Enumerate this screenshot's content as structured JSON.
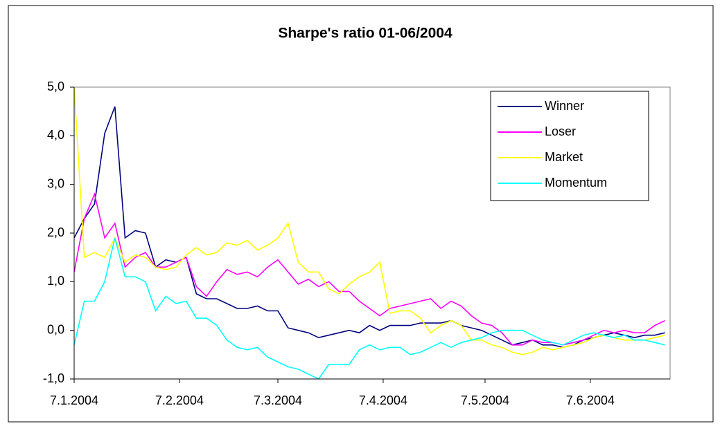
{
  "chart_data": {
    "type": "line",
    "title": "Sharpe's ratio 01-06/2004",
    "x": [
      0,
      3,
      6,
      9,
      12,
      15,
      18,
      21,
      24,
      27,
      30,
      33,
      36,
      39,
      42,
      45,
      48,
      51,
      54,
      57,
      60,
      63,
      66,
      69,
      72,
      75,
      78,
      81,
      84,
      87,
      90,
      93,
      96,
      99,
      102,
      105,
      108,
      111,
      114,
      117,
      120,
      123,
      126,
      129,
      132,
      135,
      138,
      141,
      144,
      147,
      150,
      153,
      156,
      159,
      162,
      165,
      168,
      171,
      174
    ],
    "xlim": [
      0,
      175.5
    ],
    "xticks": [
      {
        "value": 0,
        "label": "7.1.2004"
      },
      {
        "value": 31,
        "label": "7.2.2004"
      },
      {
        "value": 60,
        "label": "7.3.2004"
      },
      {
        "value": 91,
        "label": "7.4.2004"
      },
      {
        "value": 121,
        "label": "7.5.2004"
      },
      {
        "value": 152,
        "label": "7.6.2004"
      }
    ],
    "ylim": [
      -1,
      5
    ],
    "yticks": [
      {
        "value": -1,
        "label": "-1,0"
      },
      {
        "value": 0,
        "label": "0,0"
      },
      {
        "value": 1,
        "label": "1,0"
      },
      {
        "value": 2,
        "label": "2,0"
      },
      {
        "value": 3,
        "label": "3,0"
      },
      {
        "value": 4,
        "label": "4,0"
      },
      {
        "value": 5,
        "label": "5,0"
      }
    ],
    "legend": "upper right",
    "series": [
      {
        "name": "Winner",
        "color": "#000080",
        "values": [
          1.9,
          2.3,
          2.6,
          4.05,
          4.6,
          1.9,
          2.05,
          2.0,
          1.3,
          1.45,
          1.4,
          1.5,
          0.75,
          0.65,
          0.65,
          0.55,
          0.45,
          0.45,
          0.5,
          0.4,
          0.4,
          0.05,
          0.0,
          -0.05,
          -0.15,
          -0.1,
          -0.05,
          0.0,
          -0.05,
          0.1,
          0.0,
          0.1,
          0.1,
          0.1,
          0.15,
          0.15,
          0.15,
          0.2,
          0.1,
          0.05,
          0.0,
          -0.1,
          -0.2,
          -0.3,
          -0.25,
          -0.2,
          -0.3,
          -0.3,
          -0.35,
          -0.3,
          -0.2,
          -0.15,
          -0.1,
          -0.05,
          -0.1,
          -0.15,
          -0.1,
          -0.1,
          -0.05
        ]
      },
      {
        "name": "Loser",
        "color": "#ff00ff",
        "values": [
          1.2,
          2.3,
          2.8,
          1.9,
          2.2,
          1.3,
          1.5,
          1.6,
          1.3,
          1.3,
          1.4,
          1.5,
          0.9,
          0.7,
          1.0,
          1.25,
          1.15,
          1.2,
          1.1,
          1.3,
          1.45,
          1.2,
          0.95,
          1.05,
          0.9,
          1.0,
          0.8,
          0.8,
          0.6,
          0.45,
          0.3,
          0.45,
          0.5,
          0.55,
          0.6,
          0.65,
          0.45,
          0.6,
          0.5,
          0.3,
          0.15,
          0.1,
          -0.05,
          -0.3,
          -0.3,
          -0.2,
          -0.25,
          -0.25,
          -0.3,
          -0.25,
          -0.2,
          -0.1,
          0.0,
          -0.05,
          0.0,
          -0.05,
          -0.05,
          0.1,
          0.2
        ]
      },
      {
        "name": "Market",
        "color": "#ffff00",
        "values": [
          5.0,
          1.5,
          1.6,
          1.5,
          1.9,
          1.4,
          1.55,
          1.5,
          1.3,
          1.25,
          1.3,
          1.55,
          1.7,
          1.55,
          1.6,
          1.8,
          1.75,
          1.85,
          1.65,
          1.75,
          1.9,
          2.2,
          1.4,
          1.2,
          1.2,
          0.85,
          0.75,
          0.95,
          1.1,
          1.2,
          1.4,
          0.35,
          0.4,
          0.4,
          0.25,
          -0.05,
          0.1,
          0.2,
          0.1,
          -0.2,
          -0.2,
          -0.3,
          -0.35,
          -0.45,
          -0.5,
          -0.45,
          -0.35,
          -0.4,
          -0.35,
          -0.3,
          -0.25,
          -0.15,
          -0.1,
          -0.15,
          -0.2,
          -0.2,
          -0.2,
          -0.15,
          -0.1
        ]
      },
      {
        "name": "Momentum",
        "color": "#00ffff",
        "values": [
          -0.3,
          0.6,
          0.6,
          1.0,
          1.9,
          1.1,
          1.1,
          1.0,
          0.4,
          0.7,
          0.55,
          0.6,
          0.25,
          0.25,
          0.1,
          -0.2,
          -0.35,
          -0.4,
          -0.35,
          -0.55,
          -0.65,
          -0.75,
          -0.8,
          -0.9,
          -1.0,
          -0.7,
          -0.7,
          -0.7,
          -0.4,
          -0.3,
          -0.4,
          -0.35,
          -0.35,
          -0.5,
          -0.45,
          -0.35,
          -0.25,
          -0.35,
          -0.25,
          -0.2,
          -0.15,
          -0.05,
          0.0,
          0.0,
          0.0,
          -0.1,
          -0.2,
          -0.25,
          -0.3,
          -0.2,
          -0.1,
          -0.05,
          -0.1,
          -0.15,
          -0.1,
          -0.2,
          -0.2,
          -0.25,
          -0.3
        ]
      }
    ]
  }
}
